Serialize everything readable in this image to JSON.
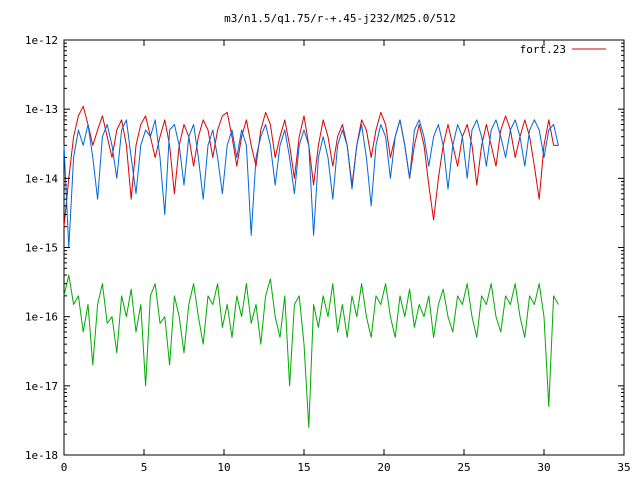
{
  "chart_data": {
    "type": "line",
    "title": "m3/n1.5/q1.75/r-+.45-j232/M25.0/512",
    "xlabel": "",
    "ylabel": "",
    "xlim": [
      0,
      35
    ],
    "ylim": [
      1e-18,
      1e-12
    ],
    "y_scale": "log",
    "x_ticks": [
      0,
      5,
      10,
      15,
      20,
      25,
      30,
      35
    ],
    "x_tick_labels": [
      "0",
      "5",
      "10",
      "15",
      "20",
      "25",
      "30",
      "35"
    ],
    "y_ticks": [
      1e-12,
      1e-13,
      1e-14,
      1e-15,
      1e-16,
      1e-17,
      1e-18
    ],
    "y_tick_labels": [
      "1e-12",
      "1e-13",
      "1e-14",
      "1e-15",
      "1e-16",
      "1e-17",
      "1e-18"
    ],
    "grid": false,
    "legend_position": "top-right",
    "series": [
      {
        "name": "fort.23",
        "color": "#dd0000",
        "x": [
          0,
          0.3,
          0.6,
          0.9,
          1.2,
          1.5,
          1.8,
          2.1,
          2.4,
          2.7,
          3.0,
          3.3,
          3.6,
          3.9,
          4.2,
          4.5,
          4.8,
          5.1,
          5.4,
          5.7,
          6.0,
          6.3,
          6.6,
          6.9,
          7.2,
          7.5,
          7.8,
          8.1,
          8.4,
          8.7,
          9.0,
          9.3,
          9.6,
          9.9,
          10.2,
          10.5,
          10.8,
          11.1,
          11.4,
          11.7,
          12.0,
          12.3,
          12.6,
          12.9,
          13.2,
          13.5,
          13.8,
          14.1,
          14.4,
          14.7,
          15.0,
          15.3,
          15.6,
          15.9,
          16.2,
          16.5,
          16.8,
          17.1,
          17.4,
          17.7,
          18.0,
          18.3,
          18.6,
          18.9,
          19.2,
          19.5,
          19.8,
          20.1,
          20.4,
          20.7,
          21.0,
          21.3,
          21.6,
          21.9,
          22.2,
          22.5,
          22.8,
          23.1,
          23.4,
          23.7,
          24.0,
          24.3,
          24.6,
          24.9,
          25.2,
          25.5,
          25.8,
          26.1,
          26.4,
          26.7,
          27.0,
          27.3,
          27.6,
          27.9,
          28.2,
          28.5,
          28.8,
          29.1,
          29.4,
          29.7,
          30.0,
          30.3,
          30.6,
          30.9
        ],
        "y": [
          2e-15,
          1e-14,
          4e-14,
          8e-14,
          1.1e-13,
          6e-14,
          3e-14,
          5e-14,
          8e-14,
          4e-14,
          2e-14,
          5e-14,
          7e-14,
          3e-14,
          5e-15,
          3e-14,
          6e-14,
          8e-14,
          4e-14,
          2e-14,
          4e-14,
          7e-14,
          3e-14,
          6e-15,
          3e-14,
          6e-14,
          4e-14,
          1.5e-14,
          4e-14,
          7e-14,
          5e-14,
          2e-14,
          5e-14,
          8e-14,
          9e-14,
          4e-14,
          1.5e-14,
          4e-14,
          7e-14,
          3e-14,
          1.5e-14,
          5e-14,
          9e-14,
          6e-14,
          2e-14,
          4e-14,
          7e-14,
          3e-14,
          1e-14,
          4e-14,
          8e-14,
          3e-14,
          8e-15,
          3e-14,
          7e-14,
          4e-14,
          1.5e-14,
          4e-14,
          6e-14,
          3e-14,
          8e-15,
          3e-14,
          7e-14,
          5e-14,
          2e-14,
          5e-14,
          9e-14,
          6e-14,
          2e-14,
          4e-14,
          7e-14,
          3e-14,
          1e-14,
          3e-14,
          6e-14,
          3e-14,
          8e-15,
          2.5e-15,
          1e-14,
          3e-14,
          6e-14,
          3e-14,
          1.5e-14,
          4e-14,
          6e-14,
          3e-14,
          8e-15,
          3e-14,
          6e-14,
          3e-14,
          1.5e-14,
          5e-14,
          8e-14,
          5e-14,
          2e-14,
          4e-14,
          7e-14,
          4e-14,
          1.5e-14,
          5e-15,
          3e-14,
          7e-14,
          3e-14,
          3e-14
        ]
      },
      {
        "color": "#0066dd",
        "x": [
          0,
          0.3,
          0.6,
          0.9,
          1.2,
          1.5,
          1.8,
          2.1,
          2.4,
          2.7,
          3.0,
          3.3,
          3.6,
          3.9,
          4.2,
          4.5,
          4.8,
          5.1,
          5.4,
          5.7,
          6.0,
          6.3,
          6.6,
          6.9,
          7.2,
          7.5,
          7.8,
          8.1,
          8.4,
          8.7,
          9.0,
          9.3,
          9.6,
          9.9,
          10.2,
          10.5,
          10.8,
          11.1,
          11.4,
          11.7,
          12.0,
          12.3,
          12.6,
          12.9,
          13.2,
          13.5,
          13.8,
          14.1,
          14.4,
          14.7,
          15.0,
          15.3,
          15.6,
          15.9,
          16.2,
          16.5,
          16.8,
          17.1,
          17.4,
          17.7,
          18.0,
          18.3,
          18.6,
          18.9,
          19.2,
          19.5,
          19.8,
          20.1,
          20.4,
          20.7,
          21.0,
          21.3,
          21.6,
          21.9,
          22.2,
          22.5,
          22.8,
          23.1,
          23.4,
          23.7,
          24.0,
          24.3,
          24.6,
          24.9,
          25.2,
          25.5,
          25.8,
          26.1,
          26.4,
          26.7,
          27.0,
          27.3,
          27.6,
          27.9,
          28.2,
          28.5,
          28.8,
          29.1,
          29.4,
          29.7,
          30.0,
          30.3,
          30.6,
          30.9
        ],
        "y": [
          3e-14,
          1e-15,
          2e-14,
          5e-14,
          3e-14,
          6e-14,
          2e-14,
          5e-15,
          4e-14,
          6e-14,
          3e-14,
          1e-14,
          5e-14,
          7e-14,
          2e-14,
          6e-15,
          3e-14,
          5e-14,
          4e-14,
          7e-14,
          2e-14,
          3e-15,
          5e-14,
          6e-14,
          3e-14,
          8e-15,
          4e-14,
          6e-14,
          2e-14,
          5e-15,
          3e-14,
          5e-14,
          2e-14,
          6e-15,
          3e-14,
          5e-14,
          2e-14,
          5e-14,
          3e-14,
          1.5e-15,
          2e-14,
          4e-14,
          6e-14,
          3e-14,
          8e-15,
          3e-14,
          5e-14,
          2e-14,
          6e-15,
          3e-14,
          5e-14,
          3e-14,
          1.5e-15,
          2e-14,
          4e-14,
          2e-14,
          5e-15,
          3e-14,
          5e-14,
          3e-14,
          7e-15,
          3e-14,
          6e-14,
          2e-14,
          4e-15,
          3e-14,
          6e-14,
          4e-14,
          1e-14,
          4e-14,
          7e-14,
          3e-14,
          1e-14,
          5e-14,
          7e-14,
          4e-14,
          1.5e-14,
          4e-14,
          6e-14,
          3e-14,
          7e-15,
          3e-14,
          6e-14,
          4e-14,
          1e-14,
          5e-14,
          7e-14,
          4e-14,
          1.5e-14,
          5e-14,
          7e-14,
          4e-14,
          2e-14,
          5e-14,
          7e-14,
          4e-14,
          1.5e-14,
          5e-14,
          7e-14,
          5e-14,
          2e-14,
          5e-14,
          6e-14,
          3e-14
        ]
      },
      {
        "color": "#00aa00",
        "x": [
          0,
          0.3,
          0.6,
          0.9,
          1.2,
          1.5,
          1.8,
          2.1,
          2.4,
          2.7,
          3.0,
          3.3,
          3.6,
          3.9,
          4.2,
          4.5,
          4.8,
          5.1,
          5.4,
          5.7,
          6.0,
          6.3,
          6.6,
          6.9,
          7.2,
          7.5,
          7.8,
          8.1,
          8.4,
          8.7,
          9.0,
          9.3,
          9.6,
          9.9,
          10.2,
          10.5,
          10.8,
          11.1,
          11.4,
          11.7,
          12.0,
          12.3,
          12.6,
          12.9,
          13.2,
          13.5,
          13.8,
          14.1,
          14.4,
          14.7,
          15.0,
          15.3,
          15.6,
          15.9,
          16.2,
          16.5,
          16.8,
          17.1,
          17.4,
          17.7,
          18.0,
          18.3,
          18.6,
          18.9,
          19.2,
          19.5,
          19.8,
          20.1,
          20.4,
          20.7,
          21.0,
          21.3,
          21.6,
          21.9,
          22.2,
          22.5,
          22.8,
          23.1,
          23.4,
          23.7,
          24.0,
          24.3,
          24.6,
          24.9,
          25.2,
          25.5,
          25.8,
          26.1,
          26.4,
          26.7,
          27.0,
          27.3,
          27.6,
          27.9,
          28.2,
          28.5,
          28.8,
          29.1,
          29.4,
          29.7,
          30.0,
          30.3,
          30.6,
          30.9
        ],
        "y": [
          2e-16,
          4e-16,
          1.5e-16,
          2e-16,
          6e-17,
          1.5e-16,
          2e-17,
          1.5e-16,
          3e-16,
          8e-17,
          1e-16,
          3e-17,
          2e-16,
          1e-16,
          2.5e-16,
          6e-17,
          1.5e-16,
          1e-17,
          2e-16,
          3e-16,
          8e-17,
          1e-16,
          2e-17,
          2e-16,
          1e-16,
          3e-17,
          1.5e-16,
          3e-16,
          1e-16,
          4e-17,
          2e-16,
          1.5e-16,
          3e-16,
          7e-17,
          1.5e-16,
          5e-17,
          2e-16,
          1e-16,
          3e-16,
          8e-17,
          1.5e-16,
          4e-17,
          2e-16,
          3.5e-16,
          1e-16,
          5e-17,
          2e-16,
          1e-17,
          1.5e-16,
          2e-16,
          4e-17,
          2.5e-18,
          1.5e-16,
          7e-17,
          2e-16,
          1e-16,
          3e-16,
          6e-17,
          1.5e-16,
          5e-17,
          2e-16,
          1e-16,
          3e-16,
          1e-16,
          5e-17,
          2e-16,
          1.5e-16,
          3e-16,
          1e-16,
          5e-17,
          2e-16,
          1e-16,
          2.5e-16,
          7e-17,
          1.5e-16,
          1e-16,
          2e-16,
          5e-17,
          1.5e-16,
          2.5e-16,
          1e-16,
          6e-17,
          2e-16,
          1.5e-16,
          3e-16,
          1e-16,
          5e-17,
          2e-16,
          1.5e-16,
          3e-16,
          1e-16,
          6e-17,
          2e-16,
          1.5e-16,
          3e-16,
          1e-16,
          5e-17,
          2e-16,
          1.5e-16,
          3e-16,
          1e-16,
          5e-18,
          2e-16,
          1.5e-16
        ]
      }
    ]
  }
}
